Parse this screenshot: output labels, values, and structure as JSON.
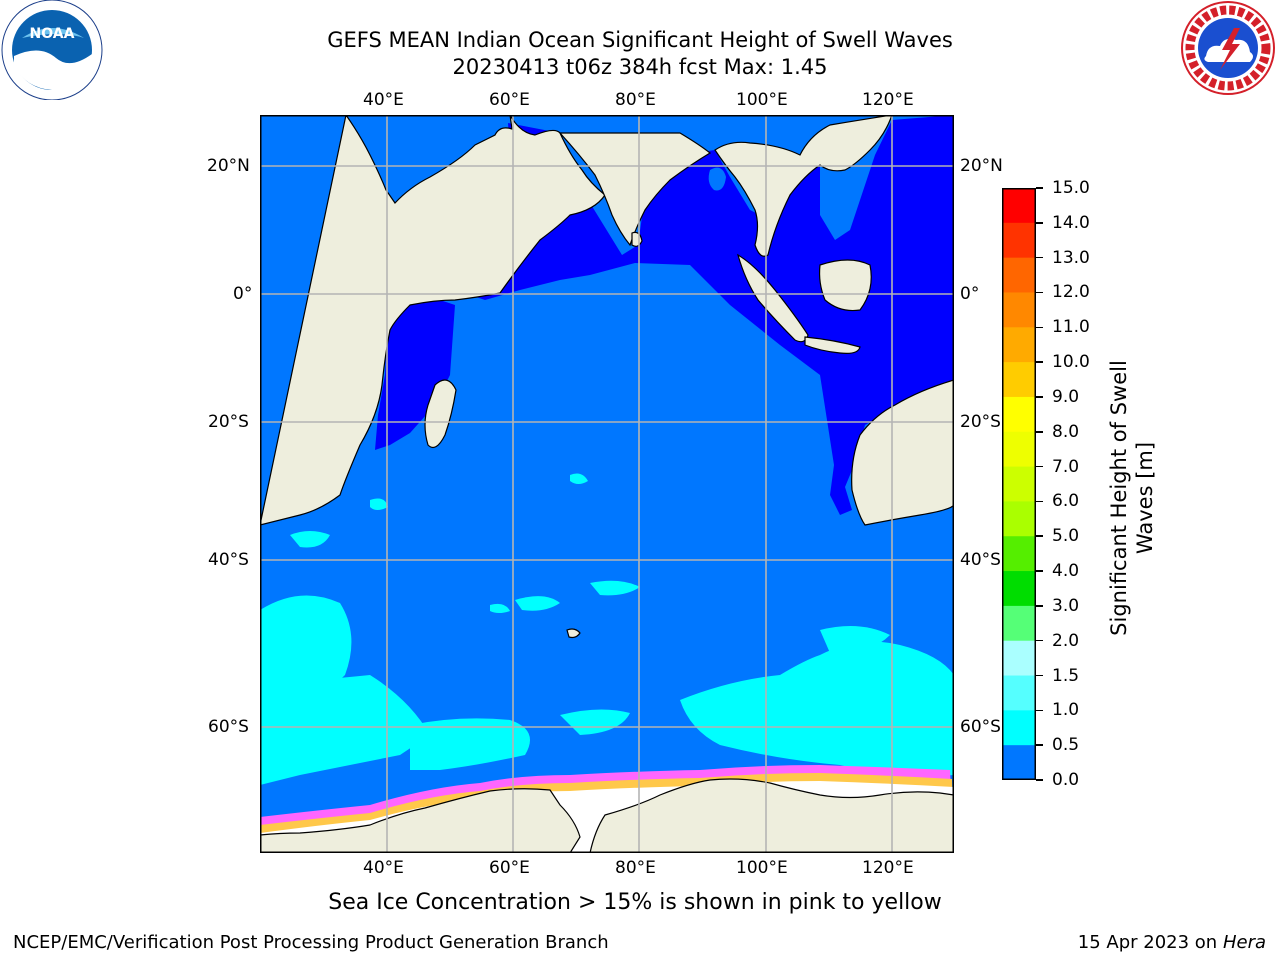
{
  "header": {
    "title_line1": "GEFS MEAN Indian Ocean Significant Height of Swell Waves",
    "title_line2": "20230413 t06z 384h fcst   Max: 1.45"
  },
  "logos": {
    "noaa": {
      "text": "NOAA",
      "ring_text": "NATIONAL OCEANIC AND ATMOSPHERIC ADMINISTRATION · U.S. DEPARTMENT OF COMMERCE",
      "color": "#0a62b0"
    },
    "nws": {
      "ring_text": "NATIONAL WEATHER SERVICE",
      "color": "#d4202a"
    }
  },
  "map": {
    "lon_ticks_top": [
      "40°E",
      "60°E",
      "80°E",
      "100°E",
      "120°E"
    ],
    "lon_ticks_bottom": [
      "40°E",
      "60°E",
      "80°E",
      "100°E",
      "120°E"
    ],
    "lat_ticks_left": [
      "20°N",
      "0°",
      "20°S",
      "40°S",
      "60°S"
    ],
    "lat_ticks_right": [
      "20°N",
      "0°",
      "20°S",
      "40°S",
      "60°S"
    ],
    "colors": {
      "land": "#eeeedd",
      "ocean_low": "#0000ff",
      "ocean_mid": "#0077ff",
      "ocean_high": "#00ffff",
      "ice_pink": "#ff66ff",
      "ice_orange": "#ffc84a",
      "ice_white": "#ffffff",
      "grid": "#b4b4b4"
    }
  },
  "colorbar": {
    "label": "Significant Height of Swell Waves [m]",
    "label_line1": "Significant Height of Swell",
    "label_line2": "Waves [m]",
    "ticks": [
      "15.0",
      "14.0",
      "13.0",
      "12.0",
      "11.0",
      "10.0",
      "9.0",
      "8.0",
      "7.0",
      "6.0",
      "5.0",
      "4.0",
      "3.0",
      "2.0",
      "1.5",
      "1.0",
      "0.5",
      "0.0"
    ],
    "colors_top_to_bottom": [
      "#ff0000",
      "#ff3300",
      "#ff6600",
      "#ff8800",
      "#ffaa00",
      "#ffcc00",
      "#ffff00",
      "#eeff00",
      "#ccff00",
      "#aaff00",
      "#55ee00",
      "#00dd00",
      "#55ff77",
      "#aaffff",
      "#55ffff",
      "#00ffff",
      "#0077ff",
      "#0000ff"
    ]
  },
  "caption": "Sea Ice Concentration > 15% is shown in pink to yellow",
  "footer": {
    "left": "NCEP/EMC/Verification Post Processing Product Generation Branch",
    "right_date": "15 Apr 2023 on ",
    "right_host": "Hera"
  }
}
